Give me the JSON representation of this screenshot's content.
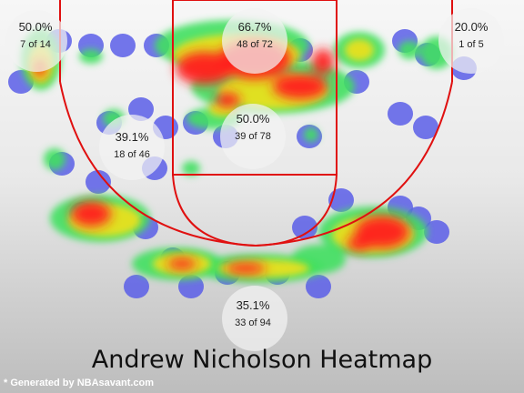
{
  "title": "Andrew Nicholson Heatmap",
  "credit": "* Generated by NBAsavant.com",
  "colors": {
    "court_line": "#e01010",
    "bubble": "#f3f3f3",
    "cold": "#5a5ee8",
    "cool": "#40e060",
    "warm": "#e8e020",
    "hot": "#ff2020"
  },
  "chart_data": {
    "type": "heatmap",
    "zones": [
      {
        "id": "left-corner-three",
        "pct": "50.0%",
        "made": 7,
        "attempts": 14,
        "count_label": "7 of 14"
      },
      {
        "id": "paint",
        "pct": "66.7%",
        "made": 48,
        "attempts": 72,
        "count_label": "48 of 72"
      },
      {
        "id": "right-corner-three",
        "pct": "20.0%",
        "made": 1,
        "attempts": 5,
        "count_label": "1 of 5"
      },
      {
        "id": "left-midrange",
        "pct": "39.1%",
        "made": 18,
        "attempts": 46,
        "count_label": "18 of 46"
      },
      {
        "id": "center-midrange",
        "pct": "50.0%",
        "made": 39,
        "attempts": 78,
        "count_label": "39 of 78"
      },
      {
        "id": "above-break-three",
        "pct": "35.1%",
        "made": 33,
        "attempts": 94,
        "count_label": "33 of 94"
      }
    ]
  }
}
